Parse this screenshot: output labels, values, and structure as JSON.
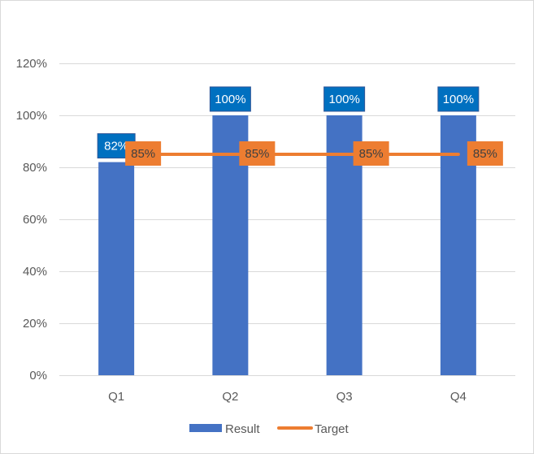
{
  "chart_data": {
    "type": "bar",
    "categories": [
      "Q1",
      "Q2",
      "Q3",
      "Q4"
    ],
    "series": [
      {
        "name": "Result",
        "kind": "bar",
        "values": [
          82,
          100,
          100,
          100
        ],
        "labels": [
          "82%",
          "100%",
          "100%",
          "100%"
        ],
        "color": "#4472C4",
        "label_bg": "#0070C0",
        "label_border": "#2F5597",
        "label_text_color": "#FFFFFF"
      },
      {
        "name": "Target",
        "kind": "line",
        "values": [
          85,
          85,
          85,
          85
        ],
        "labels": [
          "85%",
          "85%",
          "85%",
          "85%"
        ],
        "color": "#ED7D31",
        "label_bg": "#ED7D31",
        "label_text_color": "#404040"
      }
    ],
    "ylim": [
      0,
      120
    ],
    "yticks": [
      0,
      20,
      40,
      60,
      80,
      100,
      120
    ],
    "ytick_labels": [
      "0%",
      "20%",
      "40%",
      "60%",
      "80%",
      "100%",
      "120%"
    ],
    "gridlines": true,
    "grid_color": "#D9D9D9",
    "legend_position": "bottom",
    "title": "",
    "xlabel": "",
    "ylabel": ""
  }
}
